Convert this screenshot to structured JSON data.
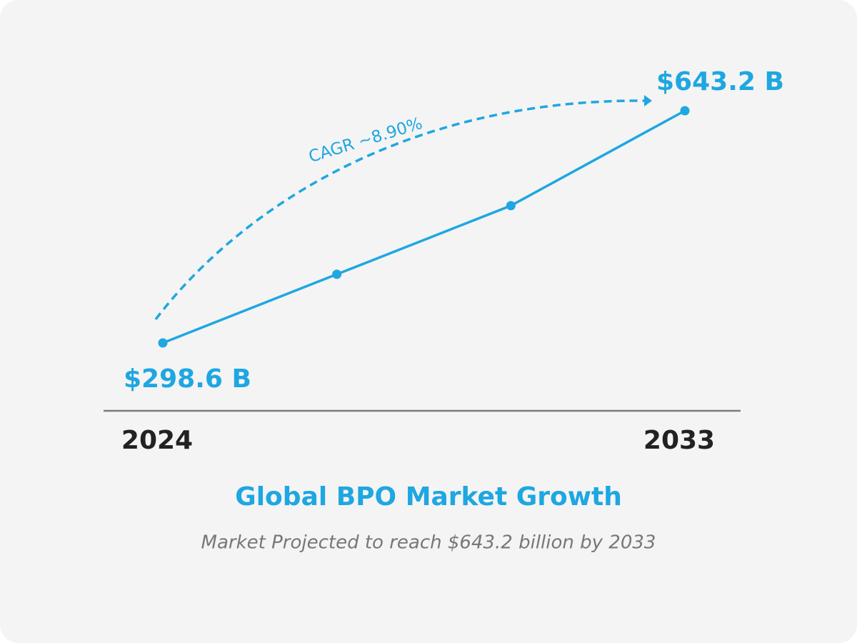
{
  "chart_data": {
    "type": "line",
    "title": "Global BPO Market Growth",
    "subtitle": "Market Projected to reach $643.2 billion by 2033",
    "annotation": "CAGR ~8.90%",
    "categories": [
      "2024",
      null,
      null,
      "2033"
    ],
    "values": [
      298.6,
      400.5,
      502.3,
      643.2
    ],
    "value_labels": [
      "$298.6 B",
      null,
      null,
      "$643.2 B"
    ],
    "color": "#1ea7e1"
  }
}
